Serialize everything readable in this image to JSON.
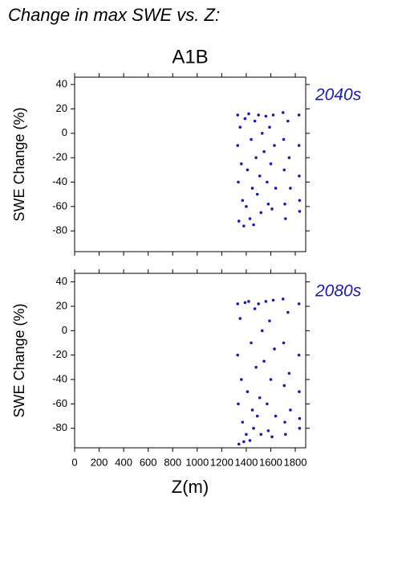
{
  "title": "Change in max SWE vs. Z:",
  "subtitle": "A1B",
  "chart_data": [
    {
      "type": "scatter",
      "label": "2040s",
      "ylabel": "SWE Change (%)",
      "xlim": [
        0,
        1885
      ],
      "xticks": [
        0,
        200,
        400,
        600,
        800,
        1000,
        1200,
        1400,
        1600,
        1800
      ],
      "ylim": [
        -97,
        46
      ],
      "yticks": [
        40,
        20,
        0,
        -20,
        -40,
        -60,
        -80
      ],
      "series": [
        {
          "color": "#1a1ab8",
          "x": [
            1330,
            1330,
            1335,
            1340,
            1350,
            1360,
            1370,
            1380,
            1390,
            1400,
            1410,
            1420,
            1430,
            1440,
            1450,
            1460,
            1470,
            1480,
            1490,
            1500,
            1510,
            1520,
            1530,
            1545,
            1560,
            1570,
            1580,
            1590,
            1600,
            1610,
            1620,
            1630,
            1640,
            1700,
            1705,
            1710,
            1715,
            1720,
            1740,
            1750,
            1760,
            1830,
            1830,
            1832,
            1835,
            1835
          ],
          "values": [
            15,
            -10,
            -40,
            -72,
            5,
            -25,
            -55,
            -76,
            12,
            -60,
            -30,
            16,
            -70,
            -5,
            -45,
            -75,
            10,
            -20,
            -50,
            15,
            -35,
            -65,
            0,
            -15,
            14,
            -40,
            -58,
            5,
            -25,
            -62,
            15,
            -10,
            -45,
            17,
            -5,
            -30,
            -58,
            -70,
            10,
            -20,
            -45,
            15,
            -10,
            -35,
            -55,
            -64
          ]
        }
      ]
    },
    {
      "type": "scatter",
      "label": "2080s",
      "ylabel": "SWE Change (%)",
      "xlabel": "Z(m)",
      "xlim": [
        0,
        1885
      ],
      "xticks": [
        0,
        200,
        400,
        600,
        800,
        1000,
        1200,
        1400,
        1600,
        1800
      ],
      "ylim": [
        -96,
        47
      ],
      "yticks": [
        40,
        20,
        0,
        -20,
        -40,
        -60,
        -80
      ],
      "series": [
        {
          "color": "#1a1ab8",
          "x": [
            1330,
            1330,
            1335,
            1340,
            1350,
            1360,
            1370,
            1380,
            1390,
            1400,
            1410,
            1420,
            1430,
            1440,
            1450,
            1460,
            1470,
            1480,
            1490,
            1500,
            1510,
            1520,
            1530,
            1545,
            1560,
            1570,
            1580,
            1590,
            1600,
            1610,
            1620,
            1630,
            1640,
            1700,
            1705,
            1710,
            1715,
            1720,
            1740,
            1750,
            1760,
            1830,
            1830,
            1832,
            1835,
            1835
          ],
          "values": [
            22,
            -20,
            -60,
            -93,
            10,
            -40,
            -75,
            -91,
            23,
            -85,
            -50,
            24,
            -90,
            -10,
            -65,
            -80,
            18,
            -30,
            -70,
            22,
            -55,
            -85,
            0,
            -25,
            24,
            -60,
            -82,
            8,
            -40,
            -87,
            25,
            -15,
            -70,
            26,
            -10,
            -45,
            -75,
            -85,
            15,
            -35,
            -65,
            22,
            -20,
            -50,
            -72,
            -80
          ]
        }
      ]
    }
  ]
}
